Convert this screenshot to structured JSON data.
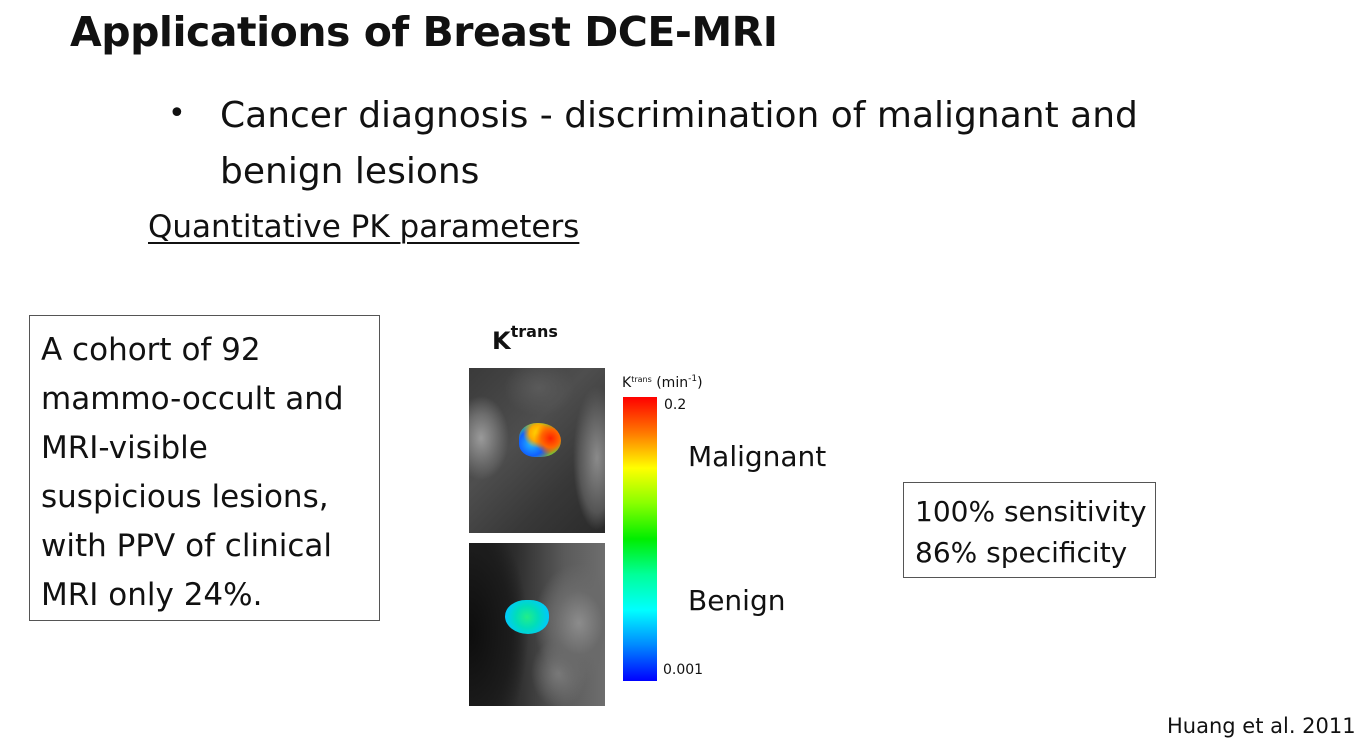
{
  "slide": {
    "title": "Applications of Breast DCE-MRI",
    "bullet": {
      "symbol": "•",
      "line1": "Cancer diagnosis - discrimination of malignant and",
      "line2": "benign lesions"
    },
    "subheading": "Quantitative PK parameters"
  },
  "cohort_box": {
    "lines": [
      "A cohort of 92",
      "mammo-occult and",
      "MRI-visible",
      "suspicious lesions,",
      "with PPV of clinical",
      "MRI only 24%."
    ]
  },
  "figure": {
    "title_base": "K",
    "title_sup": "trans",
    "colorbar": {
      "label_base": "K",
      "label_sup": "trans",
      "unit_prefix": " (min",
      "unit_sup": "-1",
      "unit_suffix": ")",
      "max": "0.2",
      "min": "0.001",
      "colors": [
        "#ff0000",
        "#ff7700",
        "#ffff00",
        "#88ff00",
        "#00ee00",
        "#00ff99",
        "#00ffff",
        "#0088ff",
        "#0000ff"
      ]
    },
    "labels": {
      "malignant": "Malignant",
      "benign": "Benign"
    }
  },
  "stats": {
    "sensitivity": "100% sensitivity",
    "specificity": "86% specificity"
  },
  "citation": "Huang et al. 2011"
}
